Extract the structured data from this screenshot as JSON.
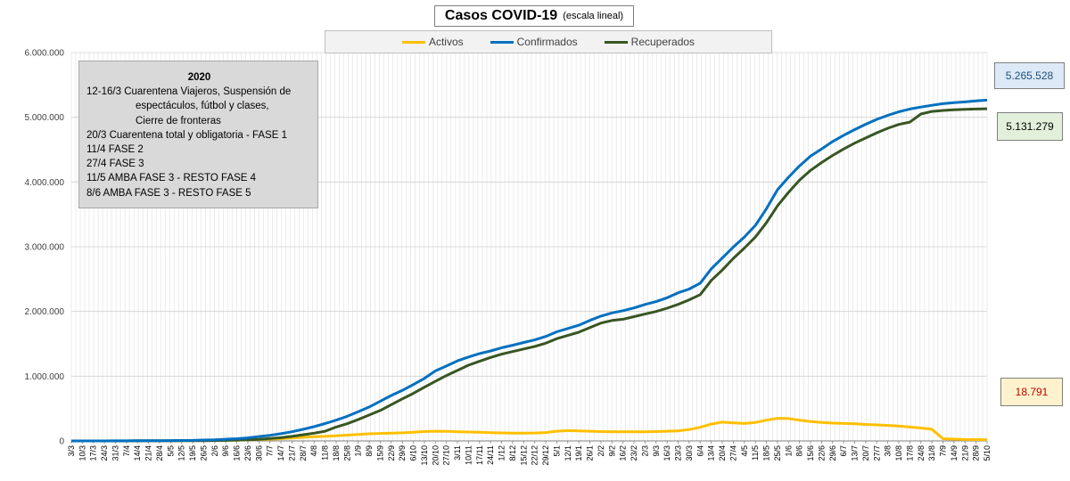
{
  "title": {
    "main": "Casos  COVID-19",
    "sub": "(escala lineal)"
  },
  "legend": [
    {
      "label": "Activos",
      "color": "#ffc000"
    },
    {
      "label": "Confirmados",
      "color": "#0070c0"
    },
    {
      "label": "Recuperados",
      "color": "#375623"
    }
  ],
  "annotation": {
    "title": "2020",
    "lines": [
      "12-16/3  Cuarentena Viajeros, Suspensión de",
      "espectáculos, fútbol y clases,",
      "Cierre de fronteras",
      "20/3 Cuarentena total y obligatoria - FASE 1",
      "11/4 FASE 2",
      "27/4 FASE 3",
      "11/5 AMBA FASE 3  -  RESTO FASE 4",
      "8/6 AMBA FASE 3  -  RESTO FASE 5"
    ]
  },
  "value_boxes": {
    "confirmed": "5.265.528",
    "recovered": "5.131.279",
    "active": "18.791"
  },
  "chart_data": {
    "type": "line",
    "title": "Casos  COVID-19 (escala lineal)",
    "ylim": [
      0,
      6000000
    ],
    "yticks": [
      "0",
      "1.000.000",
      "2.000.000",
      "3.000.000",
      "4.000.000",
      "5.000.000",
      "6.000.000"
    ],
    "ytick_values": [
      0,
      1000000,
      2000000,
      3000000,
      4000000,
      5000000,
      6000000
    ],
    "grid": true,
    "legend_position": "top",
    "x_categories": [
      "3/3",
      "10/3",
      "17/3",
      "24/3",
      "31/3",
      "7/4",
      "14/4",
      "21/4",
      "28/4",
      "5/5",
      "12/5",
      "19/5",
      "26/5",
      "2/6",
      "9/6",
      "16/6",
      "23/6",
      "30/6",
      "7/7",
      "14/7",
      "21/7",
      "28/7",
      "4/8",
      "11/8",
      "18/8",
      "25/8",
      "1/9",
      "8/9",
      "15/9",
      "22/9",
      "29/9",
      "6/10",
      "13/10",
      "20/10",
      "27/10",
      "3/11",
      "10/11",
      "17/11",
      "24/11",
      "1/12",
      "8/12",
      "15/12",
      "22/12",
      "29/12",
      "5/1",
      "12/1",
      "19/1",
      "26/1",
      "2/2",
      "9/2",
      "16/2",
      "23/2",
      "2/3",
      "9/3",
      "16/3",
      "23/3",
      "30/3",
      "6/4",
      "13/4",
      "20/4",
      "27/4",
      "4/5",
      "11/5",
      "18/5",
      "25/5",
      "1/6",
      "8/6",
      "15/6",
      "22/6",
      "29/6",
      "6/7",
      "13/7",
      "20/7",
      "27/7",
      "3/8",
      "10/8",
      "17/8",
      "24/8",
      "31/8",
      "7/9",
      "14/9",
      "21/9",
      "28/9",
      "5/10"
    ],
    "series": [
      {
        "name": "Activos",
        "color": "#ffc000",
        "values": [
          0,
          0,
          0,
          0,
          0,
          0,
          1000,
          1500,
          2000,
          3000,
          4000,
          5000,
          6000,
          8000,
          10000,
          12000,
          15000,
          20000,
          27000,
          35000,
          45000,
          55000,
          65000,
          70000,
          80000,
          90000,
          100000,
          110000,
          115000,
          120000,
          125000,
          135000,
          145000,
          150000,
          148000,
          142000,
          137000,
          133000,
          128000,
          124000,
          121000,
          120000,
          122000,
          130000,
          150000,
          160000,
          155000,
          150000,
          145000,
          142000,
          140000,
          140000,
          142000,
          145000,
          150000,
          155000,
          175000,
          210000,
          260000,
          290000,
          280000,
          270000,
          285000,
          320000,
          350000,
          345000,
          320000,
          300000,
          285000,
          275000,
          270000,
          265000,
          255000,
          248000,
          240000,
          230000,
          215000,
          200000,
          180000,
          35000,
          28000,
          22000,
          20000,
          18791
        ]
      },
      {
        "name": "Confirmados",
        "color": "#0070c0",
        "values": [
          1,
          12,
          79,
          387,
          1054,
          1975,
          2571,
          3288,
          4285,
          5208,
          6563,
          8809,
          13228,
          18319,
          25987,
          34159,
          47216,
          67197,
          87030,
          111160,
          141900,
          178996,
          220682,
          268574,
          320884,
          380292,
          451198,
          524198,
          613658,
          702484,
          779689,
          871468,
          965609,
          1081336,
          1157179,
          1236851,
          1296378,
          1349434,
          1390388,
          1440103,
          1478379,
          1520026,
          1561178,
          1613928,
          1685888,
          1737225,
          1787458,
          1862192,
          1928000,
          1977000,
          2012000,
          2055000,
          2108000,
          2152000,
          2212000,
          2288000,
          2347000,
          2437000,
          2658628,
          2824652,
          2994139,
          3150000,
          3330000,
          3586736,
          3880000,
          4073000,
          4250000,
          4399000,
          4510000,
          4625000,
          4721999,
          4810000,
          4892000,
          4968000,
          5030000,
          5085000,
          5127000,
          5158000,
          5185000,
          5210000,
          5225000,
          5238000,
          5253000,
          5265528
        ]
      },
      {
        "name": "Recuperados",
        "color": "#375623",
        "values": [
          0,
          0,
          3,
          52,
          228,
          440,
          702,
          1000,
          1300,
          1700,
          2400,
          3100,
          4500,
          6000,
          8500,
          12000,
          18000,
          25000,
          37000,
          50000,
          70000,
          95000,
          120000,
          150000,
          215000,
          265000,
          330000,
          400000,
          470000,
          560000,
          650000,
          735000,
          830000,
          920000,
          1010000,
          1090000,
          1170000,
          1230000,
          1290000,
          1340000,
          1380000,
          1420000,
          1460000,
          1510000,
          1580000,
          1630000,
          1680000,
          1750000,
          1820000,
          1860000,
          1880000,
          1920000,
          1960000,
          2000000,
          2050000,
          2110000,
          2180000,
          2260000,
          2480000,
          2640000,
          2820000,
          2980000,
          3150000,
          3370000,
          3630000,
          3840000,
          4030000,
          4180000,
          4300000,
          4410000,
          4510000,
          4600000,
          4680000,
          4760000,
          4830000,
          4890000,
          4925000,
          5050000,
          5090000,
          5105000,
          5115000,
          5122000,
          5127000,
          5131279
        ]
      }
    ]
  }
}
